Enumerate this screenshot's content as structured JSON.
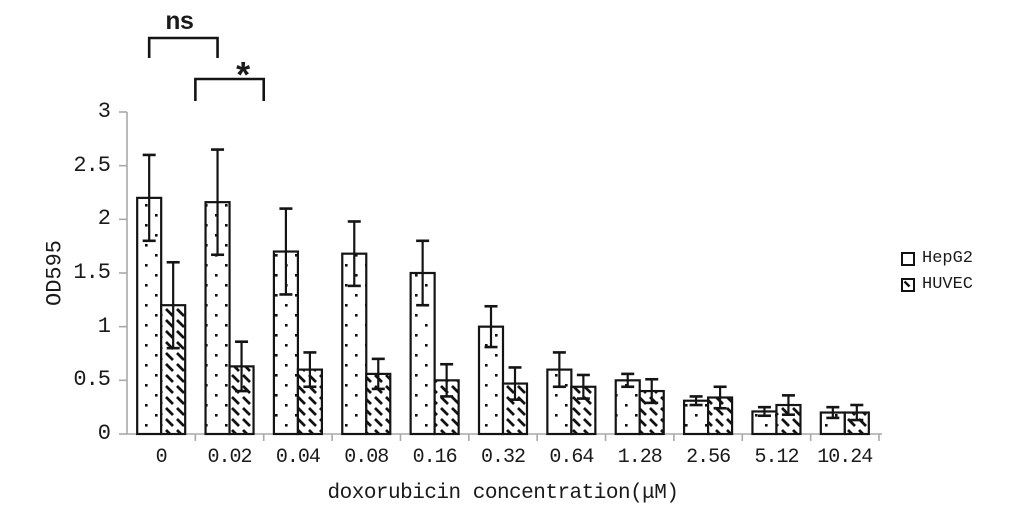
{
  "chart_data": {
    "type": "bar",
    "title": "",
    "xlabel": "doxorubicin concentration(μM)",
    "ylabel": "OD595",
    "ylim": [
      0,
      3
    ],
    "yticks": [
      0,
      0.5,
      1,
      1.5,
      2,
      2.5,
      3
    ],
    "ytick_labels": [
      "0",
      "0.5",
      "1",
      "1.5",
      "2",
      "2.5",
      "3"
    ],
    "categories": [
      "0",
      "0.02",
      "0.04",
      "0.08",
      "0.16",
      "0.32",
      "0.64",
      "1.28",
      "2.56",
      "5.12",
      "10.24"
    ],
    "series": [
      {
        "name": "HepG2",
        "pattern": "dots",
        "values": [
          2.2,
          2.16,
          1.7,
          1.68,
          1.5,
          1.0,
          0.6,
          0.5,
          0.31,
          0.21,
          0.2
        ],
        "errors": [
          0.4,
          0.49,
          0.4,
          0.3,
          0.3,
          0.19,
          0.16,
          0.06,
          0.04,
          0.04,
          0.05
        ]
      },
      {
        "name": "HUVEC",
        "pattern": "diagonal-hatch",
        "values": [
          1.2,
          0.63,
          0.6,
          0.56,
          0.5,
          0.47,
          0.44,
          0.4,
          0.34,
          0.27,
          0.2
        ],
        "errors": [
          0.4,
          0.23,
          0.16,
          0.14,
          0.15,
          0.15,
          0.11,
          0.11,
          0.1,
          0.09,
          0.07
        ]
      }
    ],
    "legend": {
      "position": "right",
      "entries": [
        "HepG2",
        "HUVEC"
      ]
    },
    "grid": false,
    "error_bars": true,
    "annotations": [
      {
        "label": "ns",
        "type": "bracket",
        "series": "HepG2",
        "from_category": "0",
        "to_category": "0.02"
      },
      {
        "label": "*",
        "type": "bracket",
        "spans": "group 0.02"
      }
    ],
    "colors": {
      "background": "#ffffff",
      "axis": "#a9a9a9",
      "bar_outline": "#141414",
      "bar_fill": "#ffffff",
      "text": "#1a1a1a"
    }
  }
}
